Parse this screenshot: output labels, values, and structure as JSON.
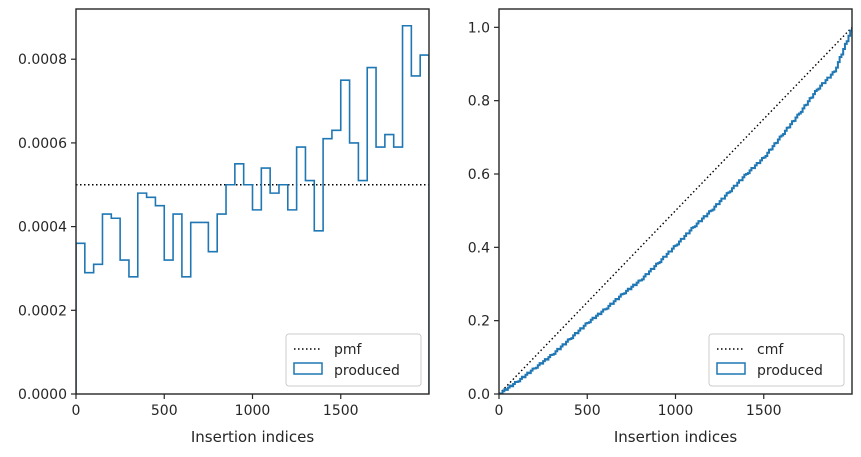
{
  "chart_data": [
    {
      "type": "step",
      "xlabel": "Insertion indices",
      "ylabel": "",
      "xlim": [
        0,
        2000
      ],
      "ylim": [
        0,
        0.00092
      ],
      "xticks": [
        0,
        500,
        1000,
        1500
      ],
      "xtick_labels": [
        "0",
        "500",
        "1000",
        "1500"
      ],
      "yticks": [
        0,
        0.0002,
        0.0004,
        0.0006,
        0.0008
      ],
      "ytick_labels": [
        "0.0000",
        "0.0002",
        "0.0004",
        "0.0006",
        "0.0008"
      ],
      "legend_position": "bottom-right",
      "legend": [
        "pmf",
        "produced"
      ],
      "series": [
        {
          "name": "pmf",
          "style": "dotted",
          "color": "#000000",
          "x": [
            0,
            2000
          ],
          "y": [
            0.0005,
            0.0005
          ]
        },
        {
          "name": "produced",
          "style": "histogram-step",
          "color": "#1f77b4",
          "bin_width": 50,
          "bin_starts": [
            0,
            50,
            100,
            150,
            200,
            250,
            300,
            350,
            400,
            450,
            500,
            550,
            600,
            650,
            700,
            750,
            800,
            850,
            900,
            950,
            1000,
            1050,
            1100,
            1150,
            1200,
            1250,
            1300,
            1350,
            1400,
            1450,
            1500,
            1550,
            1600,
            1650,
            1700,
            1750,
            1800,
            1850,
            1900,
            1950
          ],
          "values": [
            0.00036,
            0.00029,
            0.00031,
            0.00043,
            0.00042,
            0.00032,
            0.00028,
            0.00048,
            0.00047,
            0.00045,
            0.00032,
            0.00043,
            0.00028,
            0.00041,
            0.00041,
            0.00034,
            0.00043,
            0.0005,
            0.00055,
            0.0005,
            0.00044,
            0.00054,
            0.00048,
            0.0005,
            0.00044,
            0.00059,
            0.00051,
            0.00039,
            0.00061,
            0.00063,
            0.00075,
            0.0006,
            0.00051,
            0.00078,
            0.00059,
            0.00062,
            0.00059,
            0.00088,
            0.00076,
            0.00081
          ]
        }
      ]
    },
    {
      "type": "line",
      "xlabel": "Insertion indices",
      "ylabel": "",
      "xlim": [
        0,
        2000
      ],
      "ylim": [
        0,
        1.05
      ],
      "xticks": [
        0,
        500,
        1000,
        1500
      ],
      "xtick_labels": [
        "0",
        "500",
        "1000",
        "1500"
      ],
      "yticks": [
        0,
        0.2,
        0.4,
        0.6,
        0.8,
        1.0
      ],
      "ytick_labels": [
        "0.0",
        "0.2",
        "0.4",
        "0.6",
        "0.8",
        "1.0"
      ],
      "legend_position": "bottom-right",
      "legend": [
        "cmf",
        "produced"
      ],
      "series": [
        {
          "name": "cmf",
          "style": "dotted",
          "color": "#000000",
          "x": [
            0,
            2000
          ],
          "y": [
            0,
            1
          ]
        },
        {
          "name": "produced",
          "style": "step-line",
          "color": "#1f77b4",
          "x": [
            0,
            100,
            200,
            300,
            400,
            500,
            600,
            700,
            800,
            900,
            1000,
            1100,
            1200,
            1300,
            1400,
            1500,
            1600,
            1700,
            1800,
            1900,
            2000
          ],
          "y": [
            0,
            0.033,
            0.07,
            0.107,
            0.15,
            0.194,
            0.231,
            0.273,
            0.31,
            0.357,
            0.405,
            0.455,
            0.5,
            0.55,
            0.6,
            0.645,
            0.705,
            0.765,
            0.83,
            0.88,
            1.0
          ]
        }
      ]
    }
  ]
}
